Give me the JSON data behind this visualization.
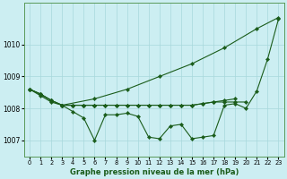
{
  "title": "Graphe pression niveau de la mer (hPa)",
  "background_color": "#cceef2",
  "line_color": "#1a5c1a",
  "grid_color": "#a8d8dc",
  "ylim": [
    1006.5,
    1011.3
  ],
  "yticks": [
    1007,
    1008,
    1009,
    1010
  ],
  "xlim": [
    -0.5,
    23.5
  ],
  "figsize": [
    3.2,
    2.0
  ],
  "dpi": 100,
  "series": [
    {
      "x": [
        0,
        1,
        2,
        3,
        4,
        5,
        6,
        7,
        8,
        9,
        10,
        11,
        12,
        13,
        14,
        15,
        16,
        17,
        18,
        19,
        20,
        21,
        22,
        23
      ],
      "y": [
        1008.6,
        1008.4,
        1008.2,
        1008.1,
        1007.9,
        1007.7,
        1007.0,
        1007.8,
        1007.8,
        1007.85,
        1007.75,
        1007.1,
        1007.05,
        1007.45,
        1007.5,
        1007.05,
        1007.1,
        1007.15,
        1008.1,
        1008.15,
        1008.0,
        1008.55,
        1009.55,
        1010.8
      ]
    },
    {
      "x": [
        0,
        1,
        2,
        3,
        4,
        5,
        6,
        7,
        8,
        9,
        10,
        11,
        12,
        13,
        14,
        15,
        16,
        17,
        18,
        19,
        20
      ],
      "y": [
        1008.6,
        1008.45,
        1008.25,
        1008.1,
        1008.1,
        1008.1,
        1008.1,
        1008.1,
        1008.1,
        1008.1,
        1008.1,
        1008.1,
        1008.1,
        1008.1,
        1008.1,
        1008.1,
        1008.15,
        1008.2,
        1008.2,
        1008.2,
        1008.2
      ]
    },
    {
      "x": [
        0,
        1,
        2,
        3,
        4,
        5,
        6,
        7,
        8,
        9,
        10,
        11,
        12,
        13,
        14,
        15,
        16,
        17,
        18,
        19
      ],
      "y": [
        1008.6,
        1008.45,
        1008.25,
        1008.1,
        1008.1,
        1008.1,
        1008.1,
        1008.1,
        1008.1,
        1008.1,
        1008.1,
        1008.1,
        1008.1,
        1008.1,
        1008.1,
        1008.1,
        1008.15,
        1008.2,
        1008.25,
        1008.3
      ]
    },
    {
      "x": [
        0,
        1,
        2,
        3,
        4,
        5,
        6
      ],
      "y": [
        1008.6,
        1008.45,
        1008.25,
        1008.1,
        1008.1,
        1008.1,
        1008.1
      ]
    },
    {
      "x": [
        3,
        6,
        9,
        12,
        15,
        18,
        21,
        23
      ],
      "y": [
        1008.1,
        1008.3,
        1008.6,
        1009.0,
        1009.4,
        1009.9,
        1010.5,
        1010.85
      ]
    }
  ],
  "x_labels": [
    "0",
    "1",
    "2",
    "3",
    "4",
    "5",
    "6",
    "7",
    "8",
    "9",
    "10",
    "11",
    "12",
    "13",
    "14",
    "15",
    "16",
    "17",
    "18",
    "19",
    "20",
    "21",
    "22",
    "23"
  ]
}
